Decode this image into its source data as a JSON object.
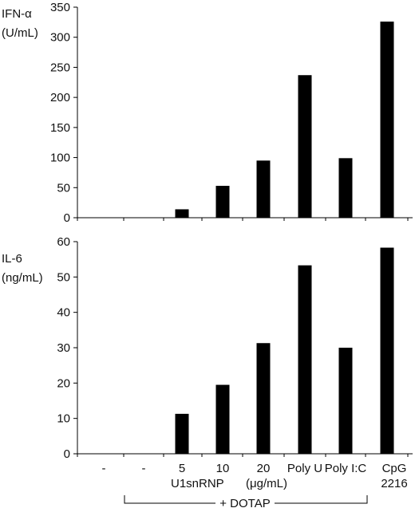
{
  "chart_data": [
    {
      "type": "bar",
      "ylabel_line1": "IFN-α",
      "ylabel_line2": "(U/mL)",
      "ylim": [
        0,
        350
      ],
      "yticks": [
        "0",
        "50",
        "100",
        "150",
        "200",
        "250",
        "300",
        "350"
      ],
      "values": [
        0,
        0,
        14,
        53,
        95,
        237,
        99,
        326
      ],
      "grid": false,
      "legend": "none"
    },
    {
      "type": "bar",
      "ylabel_line1": "IL-6",
      "ylabel_line2": "(ng/mL)",
      "ylim": [
        0,
        60
      ],
      "yticks": [
        "0",
        "10",
        "20",
        "30",
        "40",
        "50",
        "60"
      ],
      "values": [
        0,
        0,
        11.3,
        19.5,
        31.3,
        53.3,
        30,
        58.3
      ],
      "grid": false,
      "legend": "none"
    }
  ],
  "categories": {
    "row1": [
      "-",
      "-",
      "5",
      "10",
      "20",
      "Poly U",
      "Poly I:C",
      "CpG"
    ],
    "row2_u1": "U1snRNP",
    "row2_units": "(μg/mL)",
    "row2_cpg": "2216",
    "dotap": "+ DOTAP"
  },
  "colors": {
    "bar": "#000000",
    "axis": "#000000"
  }
}
